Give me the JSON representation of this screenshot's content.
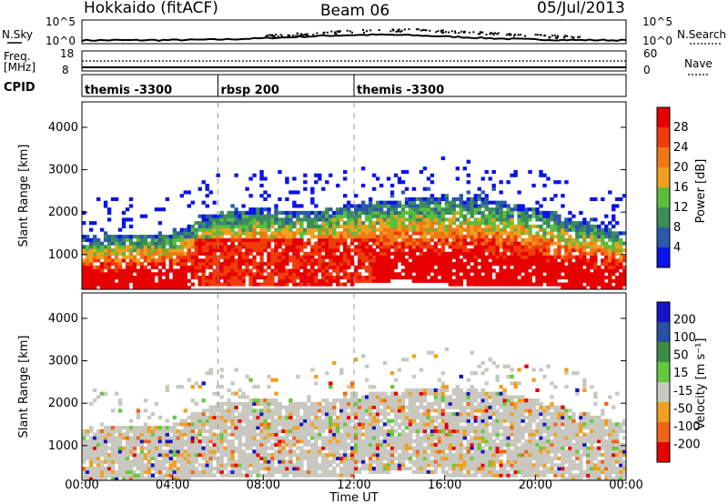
{
  "header": {
    "station": "Hokkaido (fitACF)",
    "beam": "Beam 06",
    "date": "05/Jul/2013"
  },
  "noise_panel": {
    "left_label": "N.Sky",
    "right_label": "N.Search",
    "tick_top": "10^5",
    "tick_bottom": "10^0"
  },
  "freq_panel": {
    "left_label_line1": "Freq.",
    "left_label_line2": "[MHz]",
    "left_tick_top": "18",
    "left_tick_bottom": "8",
    "right_label": "Nave",
    "right_tick_top": "60",
    "right_tick_bottom": "0"
  },
  "cpid_panel": {
    "label": "CPID",
    "segments": [
      {
        "name": "themis -3300",
        "start_hour": 0
      },
      {
        "name": "rbsp 200",
        "start_hour": 6
      },
      {
        "name": "themis -3300",
        "start_hour": 12
      }
    ]
  },
  "xaxis": {
    "label": "Time UT",
    "ticks": [
      "00:00",
      "04:00",
      "08:00",
      "12:00",
      "16:00",
      "20:00",
      "00:00"
    ]
  },
  "power_panel": {
    "ylabel": "Slant Range [km]",
    "yticks": [
      "1000",
      "2000",
      "3000",
      "4000"
    ],
    "colorbar_label": "Power [dB]",
    "colorbar_ticks": [
      "4",
      "8",
      "12",
      "16",
      "20",
      "24",
      "28"
    ]
  },
  "velocity_panel": {
    "ylabel": "Slant Range [km]",
    "yticks": [
      "1000",
      "2000",
      "3000",
      "4000"
    ],
    "colorbar_label": "Velocity [m s⁻¹]",
    "colorbar_ticks": [
      "200",
      "100",
      "50",
      "15",
      "-15",
      "-50",
      "-100",
      "-200"
    ]
  },
  "chart_data": {
    "type": "heatmap",
    "x_range_hours": [
      0,
      24
    ],
    "y_range_km": [
      180,
      4600
    ],
    "power_colors": [
      "#0a14e6",
      "#2a5aa8",
      "#3c8c5a",
      "#5abe3c",
      "#f0a01e",
      "#f07814",
      "#f03c0a",
      "#e60000"
    ],
    "power_levels_db": [
      0,
      4,
      8,
      12,
      16,
      20,
      24,
      28,
      32
    ],
    "velocity_colors": [
      "#1414c8",
      "#2850a0",
      "#3c8c46",
      "#64c83c",
      "#c8c8c0",
      "#f0a01e",
      "#f06414",
      "#e60000"
    ],
    "velocity_levels": [
      200,
      100,
      50,
      15,
      -15,
      -50,
      -100,
      -200
    ],
    "scatter_main_band": [
      {
        "time": 0,
        "range_low": 200,
        "range_high": 1400
      },
      {
        "time": 4,
        "range_low": 200,
        "range_high": 1500
      },
      {
        "time": 6,
        "range_low": 250,
        "range_high": 2000
      },
      {
        "time": 8,
        "range_low": 300,
        "range_high": 2100
      },
      {
        "time": 10,
        "range_low": 300,
        "range_high": 2000
      },
      {
        "time": 12,
        "range_low": 300,
        "range_high": 2200
      },
      {
        "time": 14,
        "range_low": 400,
        "range_high": 2300
      },
      {
        "time": 16,
        "range_low": 300,
        "range_high": 2400
      },
      {
        "time": 18,
        "range_low": 300,
        "range_high": 2300
      },
      {
        "time": 20,
        "range_low": 250,
        "range_high": 2100
      },
      {
        "time": 22,
        "range_low": 200,
        "range_high": 1800
      },
      {
        "time": 24,
        "range_low": 200,
        "range_high": 1500
      }
    ]
  }
}
